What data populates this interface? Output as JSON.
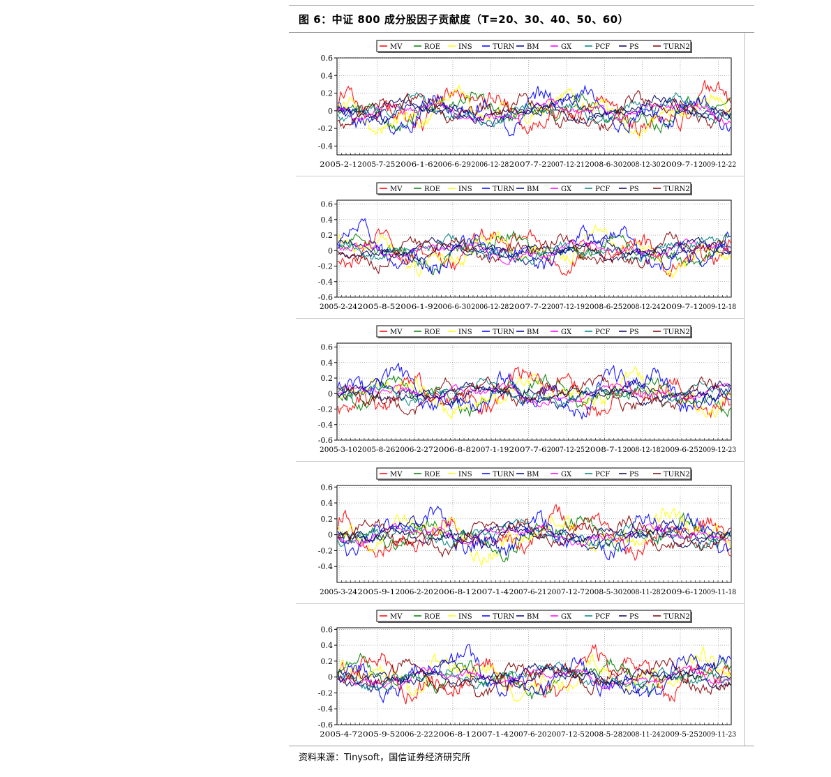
{
  "figure": {
    "title": "图 6：中证 800 成分股因子贡献度（T=20、30、40、50、60）",
    "source": "资料来源：Tinysoft，国信证券经济研究所"
  },
  "legend_entries": [
    "MV",
    "ROE",
    "INS",
    "TURN",
    "BM",
    "GX",
    "PCF",
    "PS",
    "TURN2"
  ],
  "colors": {
    "MV": "#ff0000",
    "ROE": "#008000",
    "INS": "#ffff00",
    "TURN": "#0000ff",
    "BM": "#000080",
    "GX": "#ff00ff",
    "PCF": "#008080",
    "PS": "#000060",
    "TURN2": "#800000"
  },
  "chart_data": [
    {
      "type": "line",
      "ylim": [
        -0.5,
        0.6
      ],
      "y_ticks": [
        "0.6",
        "0.4",
        "0.2",
        "0",
        "-0.2",
        "-0.4"
      ],
      "x_ticks": [
        "2005-2-1",
        "2005-7-25",
        "2006-1-6",
        "2006-6-29",
        "2006-12-28",
        "2007-7-2",
        "2007-12-21",
        "2008-6-30",
        "2008-12-30",
        "2009-7-1",
        "2009-12-22"
      ],
      "grid": true,
      "legend": "top",
      "series": [
        {
          "name": "MV",
          "amp": 0.17,
          "seed": 11
        },
        {
          "name": "ROE",
          "amp": 0.13,
          "seed": 12
        },
        {
          "name": "INS",
          "amp": 0.15,
          "seed": 13
        },
        {
          "name": "TURN",
          "amp": 0.17,
          "seed": 14
        },
        {
          "name": "BM",
          "amp": 0.09,
          "seed": 15
        },
        {
          "name": "GX",
          "amp": 0.08,
          "seed": 16
        },
        {
          "name": "PCF",
          "amp": 0.1,
          "seed": 17
        },
        {
          "name": "PS",
          "amp": 0.08,
          "seed": 18
        },
        {
          "name": "TURN2",
          "amp": 0.13,
          "seed": 19
        }
      ]
    },
    {
      "type": "line",
      "ylim": [
        -0.6,
        0.65
      ],
      "y_ticks": [
        "0.6",
        "0.4",
        "0.2",
        "0",
        "-0.2",
        "-0.4",
        "-0.6"
      ],
      "x_ticks": [
        "2005-2-24",
        "2005-8-5",
        "2006-1-9",
        "2006-6-30",
        "2006-12-28",
        "2007-7-2",
        "2007-12-19",
        "2008-6-25",
        "2008-12-24",
        "2009-7-1",
        "2009-12-18"
      ],
      "grid": true,
      "legend": "top",
      "series": [
        {
          "name": "MV",
          "amp": 0.18,
          "seed": 21
        },
        {
          "name": "ROE",
          "amp": 0.14,
          "seed": 22
        },
        {
          "name": "INS",
          "amp": 0.16,
          "seed": 23
        },
        {
          "name": "TURN",
          "amp": 0.19,
          "seed": 24
        },
        {
          "name": "BM",
          "amp": 0.09,
          "seed": 25
        },
        {
          "name": "GX",
          "amp": 0.08,
          "seed": 26
        },
        {
          "name": "PCF",
          "amp": 0.1,
          "seed": 27
        },
        {
          "name": "PS",
          "amp": 0.08,
          "seed": 28
        },
        {
          "name": "TURN2",
          "amp": 0.13,
          "seed": 29
        }
      ]
    },
    {
      "type": "line",
      "ylim": [
        -0.6,
        0.65
      ],
      "y_ticks": [
        "0.6",
        "0.4",
        "0.2",
        "0",
        "-0.2",
        "-0.4",
        "-0.6"
      ],
      "x_ticks": [
        "2005-3-10",
        "2005-8-26",
        "2006-2-27",
        "2006-8-8",
        "2007-1-19",
        "2007-7-6",
        "2007-12-25",
        "2008-7-1",
        "2008-12-18",
        "2009-6-25",
        "2009-12-23"
      ],
      "grid": true,
      "legend": "top",
      "series": [
        {
          "name": "MV",
          "amp": 0.19,
          "seed": 31
        },
        {
          "name": "ROE",
          "amp": 0.15,
          "seed": 32
        },
        {
          "name": "INS",
          "amp": 0.17,
          "seed": 33
        },
        {
          "name": "TURN",
          "amp": 0.19,
          "seed": 34
        },
        {
          "name": "BM",
          "amp": 0.09,
          "seed": 35
        },
        {
          "name": "GX",
          "amp": 0.08,
          "seed": 36
        },
        {
          "name": "PCF",
          "amp": 0.1,
          "seed": 37
        },
        {
          "name": "PS",
          "amp": 0.08,
          "seed": 38
        },
        {
          "name": "TURN2",
          "amp": 0.14,
          "seed": 39
        }
      ]
    },
    {
      "type": "line",
      "ylim": [
        -0.6,
        0.62
      ],
      "y_ticks": [
        "0.6",
        "0.4",
        "0.2",
        "0",
        "-0.2",
        "-0.4"
      ],
      "x_ticks": [
        "2005-3-24",
        "2005-9-1",
        "2006-2-20",
        "2006-8-1",
        "2007-1-4",
        "2007-6-21",
        "2007-12-7",
        "2008-5-30",
        "2008-11-28",
        "2009-6-1",
        "2009-11-18"
      ],
      "grid": true,
      "legend": "top",
      "series": [
        {
          "name": "MV",
          "amp": 0.19,
          "seed": 41
        },
        {
          "name": "ROE",
          "amp": 0.15,
          "seed": 42
        },
        {
          "name": "INS",
          "amp": 0.18,
          "seed": 43
        },
        {
          "name": "TURN",
          "amp": 0.19,
          "seed": 44
        },
        {
          "name": "BM",
          "amp": 0.1,
          "seed": 45
        },
        {
          "name": "GX",
          "amp": 0.08,
          "seed": 46
        },
        {
          "name": "PCF",
          "amp": 0.1,
          "seed": 47
        },
        {
          "name": "PS",
          "amp": 0.08,
          "seed": 48
        },
        {
          "name": "TURN2",
          "amp": 0.14,
          "seed": 49
        }
      ]
    },
    {
      "type": "line",
      "ylim": [
        -0.6,
        0.62
      ],
      "y_ticks": [
        "0.6",
        "0.4",
        "0.2",
        "0",
        "-0.2",
        "-0.4",
        "-0.6"
      ],
      "x_ticks": [
        "2005-4-7",
        "2005-9-5",
        "2006-2-22",
        "2006-8-1",
        "2007-1-4",
        "2007-6-20",
        "2007-12-5",
        "2008-5-28",
        "2008-11-24",
        "2009-5-25",
        "2009-11-23"
      ],
      "grid": true,
      "legend": "top",
      "series": [
        {
          "name": "MV",
          "amp": 0.2,
          "seed": 51
        },
        {
          "name": "ROE",
          "amp": 0.15,
          "seed": 52
        },
        {
          "name": "INS",
          "amp": 0.18,
          "seed": 53
        },
        {
          "name": "TURN",
          "amp": 0.19,
          "seed": 54
        },
        {
          "name": "BM",
          "amp": 0.1,
          "seed": 55
        },
        {
          "name": "GX",
          "amp": 0.08,
          "seed": 56
        },
        {
          "name": "PCF",
          "amp": 0.1,
          "seed": 57
        },
        {
          "name": "PS",
          "amp": 0.08,
          "seed": 58
        },
        {
          "name": "TURN2",
          "amp": 0.14,
          "seed": 59
        }
      ]
    }
  ]
}
